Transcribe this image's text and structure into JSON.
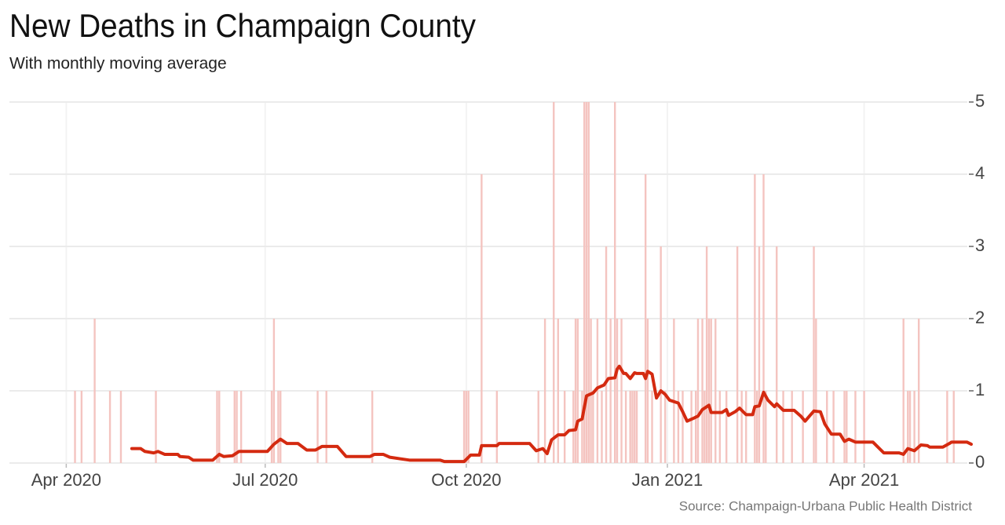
{
  "chart_data": {
    "type": "combo",
    "title": "New Deaths in Champaign County",
    "subtitle": "With monthly moving average",
    "source": "Source: Champaign-Urbana Public Health District",
    "xlim": [
      "2020-03-06",
      "2021-05-20"
    ],
    "xticks": [
      {
        "value": "2020-04-01",
        "label": "Apr 2020"
      },
      {
        "value": "2020-07-01",
        "label": "Jul 2020"
      },
      {
        "value": "2020-10-01",
        "label": "Oct 2020"
      },
      {
        "value": "2021-01-01",
        "label": "Jan 2021"
      },
      {
        "value": "2021-04-01",
        "label": "Apr 2021"
      }
    ],
    "ylim": [
      0,
      5
    ],
    "yticks": [
      0,
      1,
      2,
      3,
      4,
      5
    ],
    "grid": true,
    "series": [
      {
        "type": "bar",
        "color": "#f4c4c0",
        "x": [
          "2020-04-05",
          "2020-04-08",
          "2020-04-14",
          "2020-04-21",
          "2020-04-26",
          "2020-05-12",
          "2020-06-09",
          "2020-06-10",
          "2020-06-17",
          "2020-06-18",
          "2020-06-20",
          "2020-07-04",
          "2020-07-05",
          "2020-07-07",
          "2020-07-08",
          "2020-07-25",
          "2020-07-29",
          "2020-08-19",
          "2020-09-30",
          "2020-10-01",
          "2020-10-02",
          "2020-10-08",
          "2020-10-15",
          "2020-11-03",
          "2020-11-06",
          "2020-11-10",
          "2020-11-12",
          "2020-11-15",
          "2020-11-19",
          "2020-11-20",
          "2020-11-21",
          "2020-11-23",
          "2020-11-24",
          "2020-11-25",
          "2020-11-26",
          "2020-11-27",
          "2020-11-28",
          "2020-11-30",
          "2020-12-02",
          "2020-12-04",
          "2020-12-06",
          "2020-12-08",
          "2020-12-09",
          "2020-12-11",
          "2020-12-13",
          "2020-12-15",
          "2020-12-16",
          "2020-12-17",
          "2020-12-18",
          "2020-12-22",
          "2020-12-23",
          "2020-12-25",
          "2020-12-29",
          "2020-12-31",
          "2021-01-04",
          "2021-01-06",
          "2021-01-08",
          "2021-01-12",
          "2021-01-14",
          "2021-01-15",
          "2021-01-17",
          "2021-01-18",
          "2021-01-19",
          "2021-01-20",
          "2021-01-21",
          "2021-01-23",
          "2021-01-25",
          "2021-01-28",
          "2021-02-02",
          "2021-02-04",
          "2021-02-06",
          "2021-02-10",
          "2021-02-11",
          "2021-02-12",
          "2021-02-14",
          "2021-02-15",
          "2021-02-20",
          "2021-02-23",
          "2021-02-27",
          "2021-03-04",
          "2021-03-09",
          "2021-03-10",
          "2021-03-15",
          "2021-03-18",
          "2021-03-23",
          "2021-03-24",
          "2021-03-28",
          "2021-04-01",
          "2021-04-19",
          "2021-04-21",
          "2021-04-22",
          "2021-04-24",
          "2021-04-26",
          "2021-05-09",
          "2021-05-12"
        ],
        "values": [
          1,
          1,
          2,
          1,
          1,
          1,
          1,
          1,
          1,
          1,
          1,
          1,
          2,
          1,
          1,
          1,
          1,
          1,
          1,
          1,
          1,
          4,
          1,
          1,
          2,
          5,
          2,
          1,
          1,
          2,
          2,
          1,
          5,
          5,
          5,
          2,
          1,
          2,
          1,
          3,
          2,
          5,
          2,
          2,
          1,
          1,
          1,
          1,
          1,
          4,
          2,
          1,
          3,
          1,
          2,
          1,
          1,
          1,
          1,
          2,
          2,
          1,
          3,
          2,
          2,
          2,
          1,
          1,
          3,
          1,
          1,
          4,
          1,
          3,
          4,
          1,
          3,
          1,
          1,
          1,
          3,
          2,
          1,
          1,
          1,
          1,
          1,
          1,
          2,
          1,
          1,
          1,
          2,
          1,
          1
        ]
      },
      {
        "type": "line",
        "color": "#d42a10",
        "x": [
          "2020-05-01",
          "2020-05-05",
          "2020-05-07",
          "2020-05-11",
          "2020-05-13",
          "2020-05-16",
          "2020-05-22",
          "2020-05-23",
          "2020-05-27",
          "2020-05-29",
          "2020-06-07",
          "2020-06-10",
          "2020-06-12",
          "2020-06-16",
          "2020-06-19",
          "2020-07-02",
          "2020-07-05",
          "2020-07-08",
          "2020-07-11",
          "2020-07-16",
          "2020-07-20",
          "2020-07-24",
          "2020-07-27",
          "2020-08-03",
          "2020-08-07",
          "2020-08-18",
          "2020-08-20",
          "2020-08-24",
          "2020-08-27",
          "2020-09-05",
          "2020-09-19",
          "2020-09-21",
          "2020-09-30",
          "2020-10-03",
          "2020-10-07",
          "2020-10-08",
          "2020-10-15",
          "2020-10-16",
          "2020-10-30",
          "2020-11-02",
          "2020-11-05",
          "2020-11-07",
          "2020-11-09",
          "2020-11-12",
          "2020-11-15",
          "2020-11-17",
          "2020-11-20",
          "2020-11-21",
          "2020-11-23",
          "2020-11-25",
          "2020-11-28",
          "2020-11-30",
          "2020-12-03",
          "2020-12-05",
          "2020-12-08",
          "2020-12-09",
          "2020-12-10",
          "2020-12-12",
          "2020-12-13",
          "2020-12-15",
          "2020-12-17",
          "2020-12-18",
          "2020-12-21",
          "2020-12-22",
          "2020-12-23",
          "2020-12-25",
          "2020-12-27",
          "2020-12-29",
          "2020-12-31",
          "2021-01-02",
          "2021-01-06",
          "2021-01-08",
          "2021-01-10",
          "2021-01-13",
          "2021-01-15",
          "2021-01-17",
          "2021-01-20",
          "2021-01-21",
          "2021-01-26",
          "2021-01-28",
          "2021-01-29",
          "2021-02-01",
          "2021-02-03",
          "2021-02-06",
          "2021-02-09",
          "2021-02-10",
          "2021-02-12",
          "2021-02-14",
          "2021-02-16",
          "2021-02-19",
          "2021-02-20",
          "2021-02-23",
          "2021-02-28",
          "2021-03-03",
          "2021-03-05",
          "2021-03-07",
          "2021-03-09",
          "2021-03-12",
          "2021-03-14",
          "2021-03-17",
          "2021-03-21",
          "2021-03-23",
          "2021-03-25",
          "2021-03-28",
          "2021-04-05",
          "2021-04-10",
          "2021-04-17",
          "2021-04-19",
          "2021-04-21",
          "2021-04-24",
          "2021-04-27",
          "2021-04-30",
          "2021-05-01",
          "2021-05-07",
          "2021-05-10",
          "2021-05-11",
          "2021-05-18",
          "2021-05-20"
        ],
        "values": [
          0.2,
          0.2,
          0.16,
          0.14,
          0.16,
          0.12,
          0.12,
          0.09,
          0.08,
          0.04,
          0.04,
          0.12,
          0.09,
          0.1,
          0.16,
          0.16,
          0.26,
          0.33,
          0.27,
          0.27,
          0.18,
          0.18,
          0.23,
          0.23,
          0.09,
          0.09,
          0.12,
          0.12,
          0.08,
          0.04,
          0.04,
          0.02,
          0.02,
          0.11,
          0.11,
          0.24,
          0.24,
          0.27,
          0.27,
          0.17,
          0.2,
          0.13,
          0.32,
          0.39,
          0.39,
          0.45,
          0.46,
          0.58,
          0.61,
          0.93,
          0.97,
          1.04,
          1.08,
          1.17,
          1.18,
          1.3,
          1.34,
          1.24,
          1.24,
          1.17,
          1.25,
          1.24,
          1.24,
          1.17,
          1.27,
          1.23,
          0.9,
          1.0,
          0.95,
          0.87,
          0.83,
          0.71,
          0.58,
          0.62,
          0.65,
          0.74,
          0.8,
          0.7,
          0.7,
          0.74,
          0.66,
          0.71,
          0.76,
          0.67,
          0.67,
          0.78,
          0.79,
          0.98,
          0.87,
          0.78,
          0.82,
          0.73,
          0.73,
          0.65,
          0.58,
          0.65,
          0.72,
          0.71,
          0.54,
          0.4,
          0.4,
          0.3,
          0.33,
          0.29,
          0.29,
          0.14,
          0.14,
          0.12,
          0.2,
          0.17,
          0.25,
          0.24,
          0.22,
          0.22,
          0.27,
          0.29,
          0.29,
          0.26
        ]
      }
    ]
  }
}
